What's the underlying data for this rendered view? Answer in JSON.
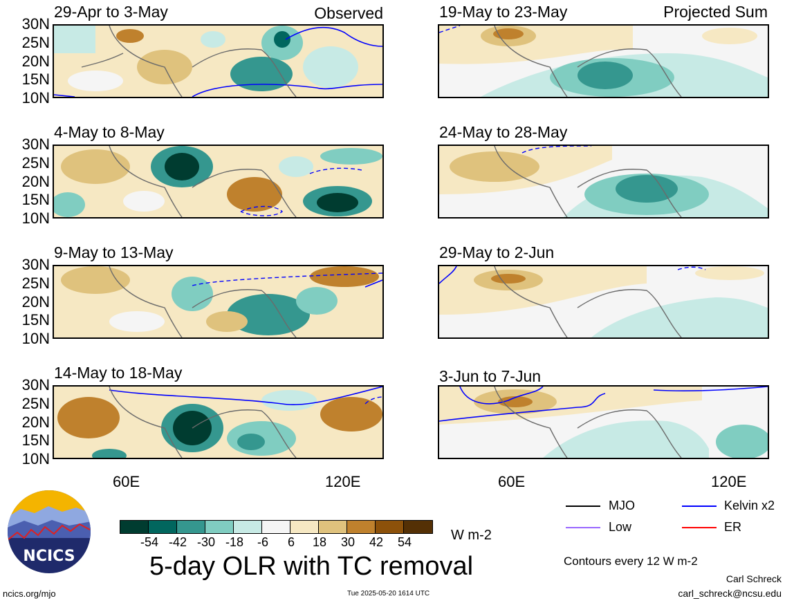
{
  "panels": [
    {
      "title": "29-Apr to 3-May",
      "tag": "Observed"
    },
    {
      "title": "19-May to 23-May",
      "tag": "Projected Sum"
    },
    {
      "title": "4-May to 8-May",
      "tag": ""
    },
    {
      "title": "24-May to 28-May",
      "tag": ""
    },
    {
      "title": "9-May to 13-May",
      "tag": ""
    },
    {
      "title": "29-May to 2-Jun",
      "tag": ""
    },
    {
      "title": "14-May to 18-May",
      "tag": ""
    },
    {
      "title": "3-Jun to 7-Jun",
      "tag": ""
    }
  ],
  "lat_labels": [
    "30N",
    "25N",
    "20N",
    "15N",
    "10N"
  ],
  "lon_labels": [
    "60E",
    "120E"
  ],
  "colorbar": {
    "colors": [
      "#01665e",
      "#35978f",
      "#80cdc1",
      "#c7eae5",
      "#f5f5f5",
      "#f6e8c3",
      "#dfc27d",
      "#bf812d",
      "#8c510a",
      "#543005"
    ],
    "first": "#003c30",
    "ticks": [
      "-54",
      "-42",
      "-30",
      "-18",
      "-6",
      "6",
      "18",
      "30",
      "42",
      "54"
    ],
    "unit": "W m-2"
  },
  "legend": {
    "mjo": "MJO",
    "kelvin": "Kelvin x2",
    "low": "Low",
    "er": "ER",
    "colors": {
      "mjo": "#000000",
      "kelvin": "#0000ff",
      "low": "#9966ff",
      "er": "#ff0000"
    }
  },
  "main_title": "5-day OLR with TC removal",
  "contour_note": "Contours every 12 W m-2",
  "logo_text": "NCICS",
  "footer": {
    "left": "ncics.org/mjo",
    "center": "Tue 2025-05-20 1614 UTC",
    "author": "Carl Schreck",
    "email": "carl_schreck@ncsu.edu"
  }
}
